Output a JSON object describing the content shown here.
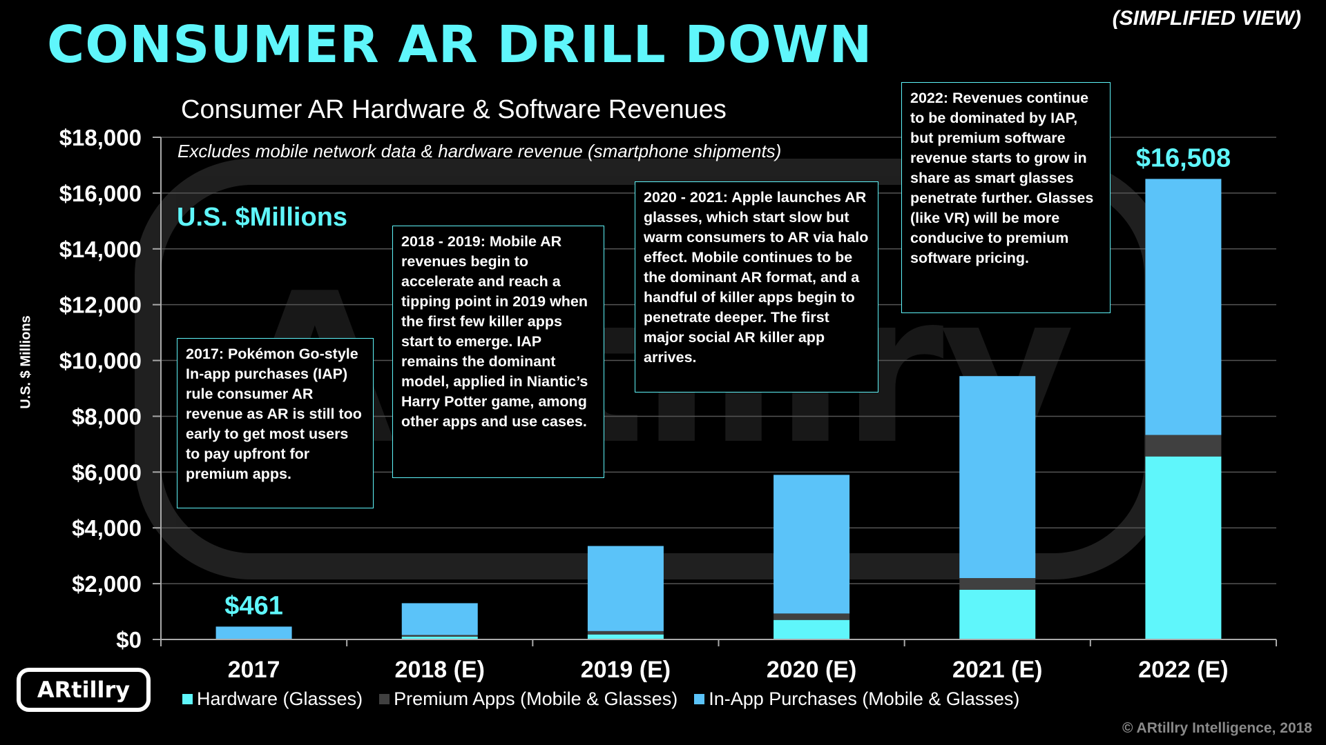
{
  "header": {
    "title": "CONSUMER AR DRILL DOWN",
    "view_label": "(SIMPLIFIED VIEW)"
  },
  "chart_info": {
    "title": "Consumer AR Hardware & Software Revenues",
    "subtitle": "Excludes mobile network data & hardware revenue (smartphone shipments)",
    "units_label": "U.S. $Millions",
    "ylabel": "U.S. $ Millions"
  },
  "notes": {
    "n2017": "2017: Pokémon Go-style In-app purchases (IAP) rule consumer AR revenue as AR is still too early to get most users to pay upfront for premium apps.",
    "n2018": "2018 - 2019: Mobile AR revenues begin to accelerate and reach a tipping point in 2019 when the first few killer apps start to emerge. IAP remains the dominant model, applied in Niantic’s Harry Potter game, among other apps and use cases.",
    "n2020": "2020 - 2021: Apple launches AR glasses, which start slow but warm consumers to AR via halo effect. Mobile continues to be the dominant AR format, and a handful of killer apps begin to penetrate deeper. The first major social AR killer app arrives.",
    "n2022": "2022: Revenues continue to be dominated by IAP, but premium software revenue starts to grow in share as smart glasses penetrate further. Glasses (like VR) will be more conducive to premium software pricing."
  },
  "logo_text": "ARtillry",
  "copyright": "© ARtillry Intelligence, 2018",
  "colors": {
    "accent": "#5ff6fb",
    "hardware": "#5ff6fb",
    "premium": "#404040",
    "iap": "#5bc3f9",
    "grid": "#555555"
  },
  "chart_data": {
    "type": "bar",
    "stacked": true,
    "categories": [
      "2017",
      "2018 (E)",
      "2019 (E)",
      "2020 (E)",
      "2021 (E)",
      "2022 (E)"
    ],
    "series": [
      {
        "name": "Hardware (Glasses)",
        "values": [
          0,
          100,
          180,
          700,
          1780,
          6560
        ]
      },
      {
        "name": "Premium Apps (Mobile & Glasses)",
        "values": [
          20,
          60,
          120,
          230,
          420,
          770
        ]
      },
      {
        "name": "In-App Purchases (Mobile & Glasses)",
        "values": [
          441,
          1140,
          3050,
          4970,
          7240,
          9178
        ]
      }
    ],
    "totals_labels": [
      {
        "category": "2017",
        "text": "$461"
      },
      {
        "category": "2022 (E)",
        "text": "$16,508"
      }
    ],
    "ylim": [
      0,
      18000
    ],
    "yticks": [
      0,
      2000,
      4000,
      6000,
      8000,
      10000,
      12000,
      14000,
      16000,
      18000
    ],
    "ytick_labels": [
      "$0",
      "$2,000",
      "$4,000",
      "$6,000",
      "$8,000",
      "$10,000",
      "$12,000",
      "$14,000",
      "$16,000",
      "$18,000"
    ],
    "grid": true,
    "legend": "bottom"
  }
}
